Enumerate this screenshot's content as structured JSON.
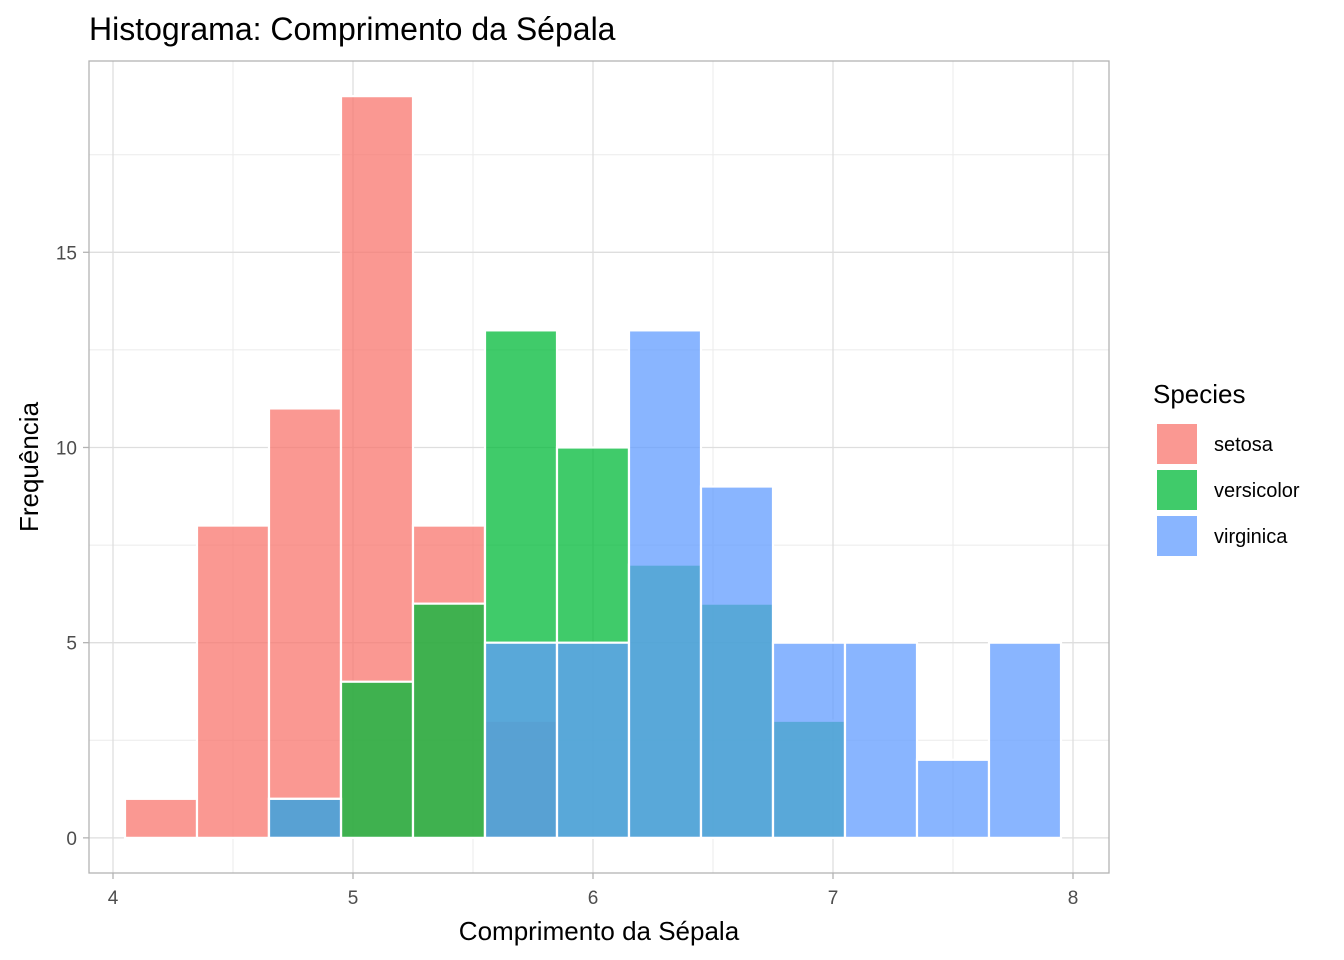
{
  "chart_data": {
    "type": "bar",
    "subtype": "histogram-overlaid",
    "title": "Histograma: Comprimento da Sépala",
    "xlabel": "Comprimento da Sépala",
    "ylabel": "Frequência",
    "xlim": [
      3.9,
      8.15
    ],
    "ylim": [
      -0.9,
      19.9
    ],
    "x_ticks": [
      4,
      5,
      6,
      7,
      8
    ],
    "x_tick_labels": [
      "4",
      "5",
      "6",
      "7",
      "8"
    ],
    "y_ticks": [
      0,
      5,
      10,
      15
    ],
    "y_tick_labels": [
      "0",
      "5",
      "10",
      "15"
    ],
    "grid": true,
    "legend": {
      "title": "Species",
      "position": "right"
    },
    "bin_edges": [
      4.05,
      4.35,
      4.65,
      4.95,
      5.25,
      5.55,
      5.85,
      6.15,
      6.45,
      6.75,
      7.05,
      7.35,
      7.65,
      7.95
    ],
    "bin_centers": [
      4.2,
      4.5,
      4.8,
      5.1,
      5.4,
      5.7,
      6.0,
      6.3,
      6.6,
      6.9,
      7.2,
      7.5,
      7.8
    ],
    "series": [
      {
        "name": "setosa",
        "color": "#F8766D",
        "values": [
          1,
          8,
          11,
          19,
          8,
          3,
          0,
          0,
          0,
          0,
          0,
          0,
          0
        ]
      },
      {
        "name": "versicolor",
        "color": "#00BA38",
        "values": [
          0,
          0,
          1,
          4,
          6,
          13,
          10,
          7,
          6,
          3,
          0,
          0,
          0
        ]
      },
      {
        "name": "virginica",
        "color": "#619CFF",
        "values": [
          0,
          0,
          1,
          0,
          0,
          5,
          5,
          13,
          9,
          5,
          5,
          2,
          5
        ]
      }
    ]
  }
}
